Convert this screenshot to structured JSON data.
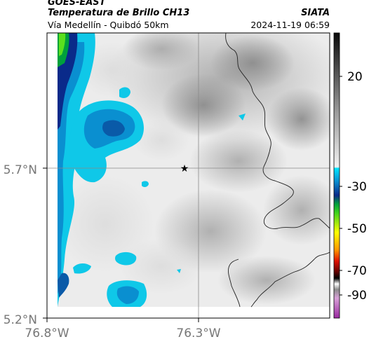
{
  "header": {
    "satellite": "GOES-EAST",
    "product": "Temperatura de Brillo CH13",
    "region": "Vía Medellín - Quibdó 50km",
    "agency": "SIATA",
    "datetime": "2024-11-19 06:59"
  },
  "map": {
    "lat_ticks": [
      "5.7°N",
      "5.2°N"
    ],
    "lon_ticks": [
      "76.8°W",
      "76.3°W"
    ],
    "marker_icon": "star-marker-icon"
  },
  "colorbar": {
    "labels": [
      "20",
      "-30",
      "-50",
      "-70",
      "-90"
    ]
  }
}
